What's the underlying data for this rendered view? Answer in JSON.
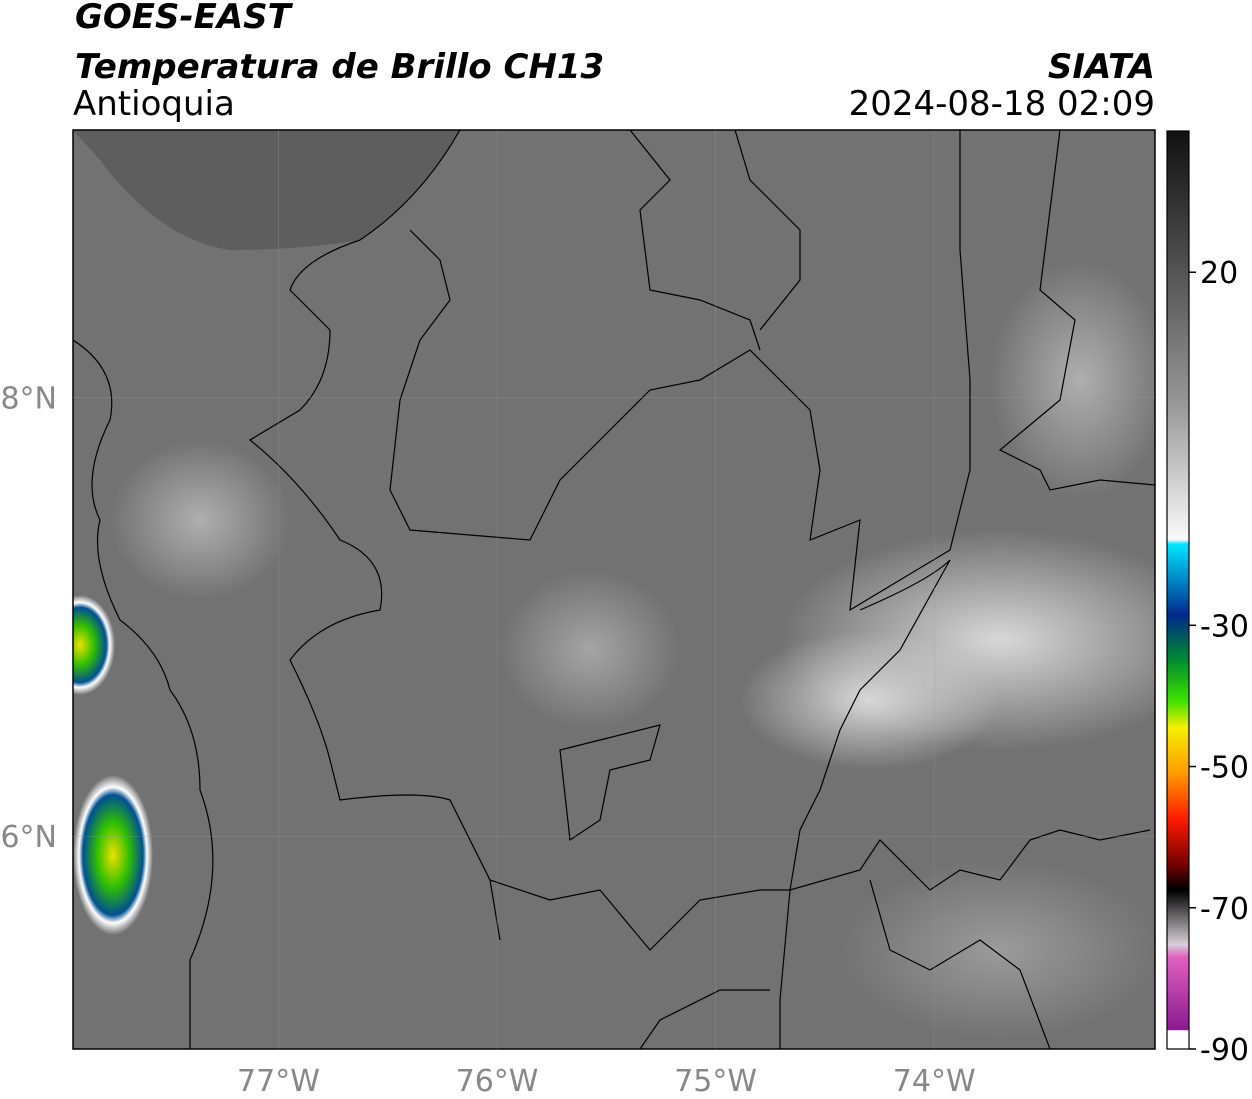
{
  "header": {
    "title": "GOES-EAST",
    "subtitle": "Temperatura de Brillo CH13",
    "region": "Antioquia",
    "source": "SIATA",
    "datetime": "2024-08-18 02:09"
  },
  "map": {
    "lonlim": [
      -77.94,
      -72.99
    ],
    "latlim": [
      5.03,
      9.22
    ],
    "lon_ticks": [
      {
        "value": -77,
        "label": "77°W"
      },
      {
        "value": -76,
        "label": "76°W"
      },
      {
        "value": -75,
        "label": "75°W"
      },
      {
        "value": -74,
        "label": "74°W"
      }
    ],
    "lat_ticks": [
      {
        "value": 8,
        "label": "8°N"
      },
      {
        "value": 6,
        "label": "6°N"
      }
    ]
  },
  "colorbar": {
    "lim": [
      -90,
      40
    ],
    "ticks": [
      20,
      -30,
      -50,
      -70,
      -90
    ]
  }
}
